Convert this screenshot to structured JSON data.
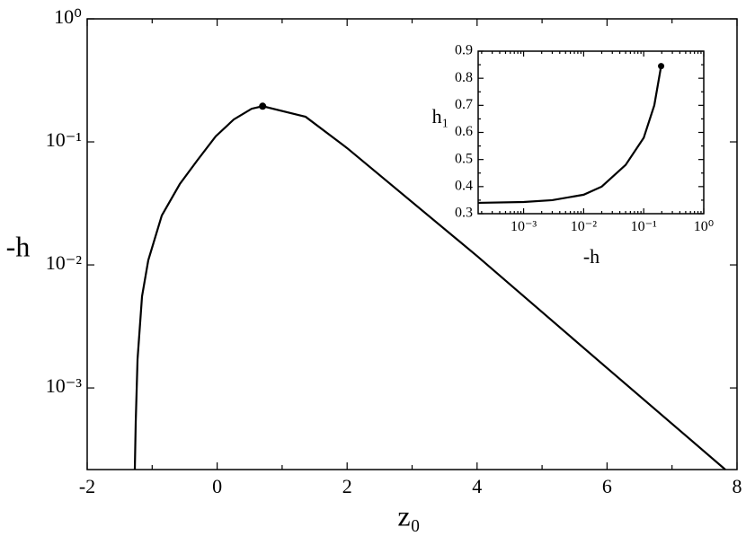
{
  "chart_data": [
    {
      "type": "line",
      "x_label": "z₀",
      "y_label": "-h",
      "color": "#000000",
      "ylog": true,
      "x": [
        -1.267,
        -1.253,
        -1.225,
        -1.156,
        -1.06,
        -0.852,
        -0.575,
        -0.299,
        -0.022,
        0.255,
        0.531,
        0.7,
        1.361,
        2.0,
        4.0,
        6.0,
        7.82
      ],
      "values": [
        0.000217,
        0.000528,
        0.00171,
        0.00555,
        0.0109,
        0.0252,
        0.0454,
        0.0715,
        0.111,
        0.152,
        0.186,
        0.195,
        0.16,
        0.089,
        0.0118,
        0.00145,
        0.000217
      ],
      "marker": {
        "x": 0.7,
        "y": 0.195
      },
      "xlim": [
        -2,
        8
      ],
      "xticks": [
        -2,
        0,
        2,
        4,
        6,
        8
      ],
      "xminorticks": [
        -1,
        1,
        3,
        5,
        7
      ],
      "ylim": [
        0.000217,
        1
      ],
      "yticks": [
        {
          "value": 0.001,
          "label": "10⁻³"
        },
        {
          "value": 0.01,
          "label": "10⁻²"
        },
        {
          "value": 0.1,
          "label": "10⁻¹"
        },
        {
          "value": 1,
          "label": "10⁰"
        }
      ]
    },
    {
      "type": "line",
      "x_label": "-h",
      "y_label": "h₁",
      "color": "#000000",
      "xlog": true,
      "x": [
        0.000175,
        0.001,
        0.003,
        0.01,
        0.02,
        0.05,
        0.1,
        0.15,
        0.195
      ],
      "values": [
        0.34,
        0.343,
        0.35,
        0.37,
        0.4,
        0.48,
        0.58,
        0.7,
        0.845
      ],
      "marker": {
        "x": 0.195,
        "y": 0.845
      },
      "xlim": [
        0.000175,
        1
      ],
      "xticks": [
        {
          "value": 0.001,
          "label": "10⁻³"
        },
        {
          "value": 0.01,
          "label": "10⁻²"
        },
        {
          "value": 0.1,
          "label": "10⁻¹"
        },
        {
          "value": 1,
          "label": "10⁰"
        }
      ],
      "xminorticks": [
        0.0002,
        0.0003,
        0.0004,
        0.0005,
        0.0006,
        0.0007,
        0.0008,
        0.0009,
        0.002,
        0.003,
        0.004,
        0.005,
        0.006,
        0.007,
        0.008,
        0.009,
        0.02,
        0.03,
        0.04,
        0.05,
        0.06,
        0.07,
        0.08,
        0.09,
        0.2,
        0.3,
        0.4,
        0.5,
        0.6,
        0.7,
        0.8,
        0.9
      ],
      "ylim": [
        0.3,
        0.9
      ],
      "yticks": [
        0.3,
        0.4,
        0.5,
        0.6,
        0.7,
        0.8,
        0.9
      ],
      "yminorticks": [
        0.35,
        0.45,
        0.55,
        0.65,
        0.75,
        0.85
      ]
    }
  ]
}
